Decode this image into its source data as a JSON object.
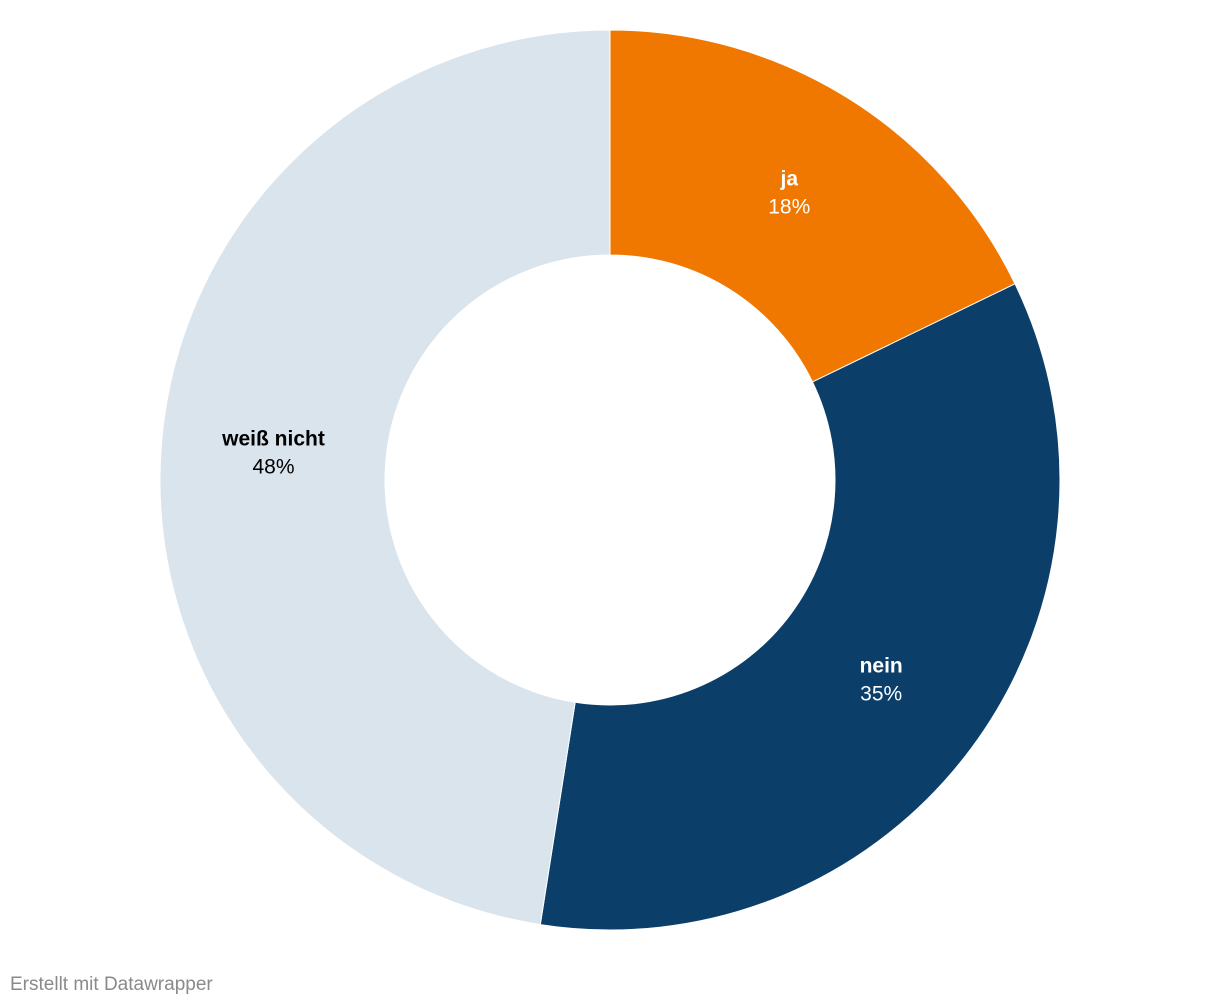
{
  "chart_data": {
    "type": "donut",
    "categories": [
      "ja",
      "nein",
      "weiß nicht"
    ],
    "values": [
      18,
      35,
      48
    ],
    "value_labels": [
      "18%",
      "35%",
      "48%"
    ],
    "colors": [
      "#f07800",
      "#0b3f6a",
      "#d9e4ed"
    ],
    "footer": "Erstellt mit Datawrapper"
  }
}
